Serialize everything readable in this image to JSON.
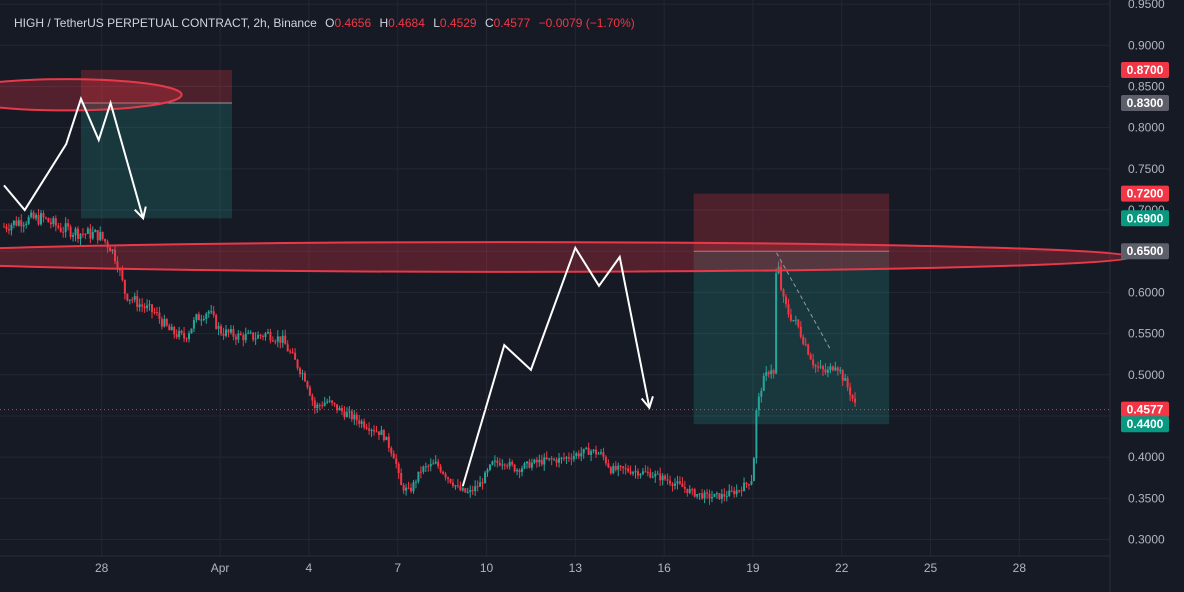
{
  "legend": {
    "symbol": "HIGH / TetherUS PERPETUAL CONTRACT, 2h, Binance",
    "o_label": "O",
    "o": "0.4656",
    "h_label": "H",
    "h": "0.4684",
    "l_label": "L",
    "l": "0.4529",
    "c_label": "C",
    "c": "0.4577",
    "change": "−0.0079 (−1.70%)"
  },
  "colors": {
    "background": "#161a25",
    "grid": "#232733",
    "up": "#26a69a",
    "down": "#f23645",
    "stop_zone": "rgba(242,54,69,0.25)",
    "target_zone": "rgba(38,166,154,0.22)",
    "ellipse": "#e8394a",
    "drawing": "#ffffff"
  },
  "chart_data": {
    "type": "candlestick",
    "title": "HIGH / TetherUS PERPETUAL CONTRACT, 2h, Binance",
    "y_ticks": [
      "0.9500",
      "0.9000",
      "0.8500",
      "0.8000",
      "0.7500",
      "0.7000",
      "0.6500",
      "0.6000",
      "0.5500",
      "0.5000",
      "0.4500",
      "0.4000",
      "0.3500",
      "0.3000"
    ],
    "x_ticks": [
      "28",
      "Apr",
      "4",
      "7",
      "10",
      "13",
      "16",
      "19",
      "22",
      "25",
      "28"
    ],
    "x_tick_days": [
      28,
      32,
      35,
      38,
      41,
      44,
      47,
      50,
      53,
      56,
      59
    ],
    "ylim": [
      0.28,
      0.955
    ],
    "xlim_days": [
      24.7,
      62.4
    ],
    "grid": true,
    "price_path": [
      [
        24.7,
        0.68
      ],
      [
        25.3,
        0.688
      ],
      [
        26.0,
        0.69
      ],
      [
        26.6,
        0.678
      ],
      [
        27.3,
        0.672
      ],
      [
        27.9,
        0.67
      ],
      [
        28.3,
        0.655
      ],
      [
        28.5,
        0.64
      ],
      [
        28.8,
        0.598
      ],
      [
        29.3,
        0.585
      ],
      [
        29.8,
        0.575
      ],
      [
        30.3,
        0.553
      ],
      [
        30.8,
        0.545
      ],
      [
        31.2,
        0.568
      ],
      [
        31.6,
        0.578
      ],
      [
        32.0,
        0.553
      ],
      [
        32.6,
        0.547
      ],
      [
        33.2,
        0.546
      ],
      [
        33.6,
        0.55
      ],
      [
        34.1,
        0.542
      ],
      [
        34.6,
        0.512
      ],
      [
        34.9,
        0.495
      ],
      [
        35.2,
        0.46
      ],
      [
        35.6,
        0.468
      ],
      [
        36.0,
        0.458
      ],
      [
        36.5,
        0.448
      ],
      [
        37.0,
        0.438
      ],
      [
        37.5,
        0.428
      ],
      [
        37.9,
        0.4
      ],
      [
        38.1,
        0.365
      ],
      [
        38.4,
        0.358
      ],
      [
        38.8,
        0.385
      ],
      [
        39.3,
        0.392
      ],
      [
        39.7,
        0.375
      ],
      [
        40.1,
        0.36
      ],
      [
        40.4,
        0.356
      ],
      [
        40.8,
        0.368
      ],
      [
        41.2,
        0.392
      ],
      [
        41.6,
        0.395
      ],
      [
        42.0,
        0.385
      ],
      [
        42.5,
        0.392
      ],
      [
        43.0,
        0.396
      ],
      [
        43.5,
        0.397
      ],
      [
        44.0,
        0.403
      ],
      [
        44.5,
        0.408
      ],
      [
        44.9,
        0.403
      ],
      [
        45.2,
        0.385
      ],
      [
        45.6,
        0.385
      ],
      [
        46.0,
        0.383
      ],
      [
        46.5,
        0.38
      ],
      [
        47.0,
        0.374
      ],
      [
        47.5,
        0.366
      ],
      [
        48.0,
        0.356
      ],
      [
        48.5,
        0.352
      ],
      [
        49.0,
        0.353
      ],
      [
        49.5,
        0.36
      ],
      [
        49.8,
        0.368
      ],
      [
        50.0,
        0.375
      ],
      [
        50.1,
        0.452
      ],
      [
        50.3,
        0.488
      ],
      [
        50.6,
        0.51
      ],
      [
        50.7,
        0.5
      ],
      [
        50.8,
        0.645
      ],
      [
        51.0,
        0.592
      ],
      [
        51.2,
        0.575
      ],
      [
        51.5,
        0.56
      ],
      [
        51.8,
        0.535
      ],
      [
        52.1,
        0.51
      ],
      [
        52.5,
        0.502
      ],
      [
        52.8,
        0.515
      ],
      [
        53.1,
        0.492
      ],
      [
        53.3,
        0.478
      ],
      [
        53.5,
        0.458
      ]
    ],
    "last_price": "0.4577",
    "price_badges": [
      {
        "label": "0.8700",
        "value": 0.87,
        "color": "#f23645"
      },
      {
        "label": "0.8300",
        "value": 0.83,
        "color": "#5d606b"
      },
      {
        "label": "0.7200",
        "value": 0.72,
        "color": "#f23645"
      },
      {
        "label": "0.6900",
        "value": 0.69,
        "color": "#089981"
      },
      {
        "label": "0.6500",
        "value": 0.65,
        "color": "#5d606b"
      },
      {
        "label": "0.4577",
        "value": 0.4577,
        "color": "#f23645"
      },
      {
        "label": "0.4400",
        "value": 0.44,
        "color": "#089981"
      }
    ],
    "positions": [
      {
        "type": "short",
        "start_day": 27.3,
        "end_day": 32.4,
        "entry": 0.83,
        "stop": 0.87,
        "target": 0.69
      },
      {
        "type": "short",
        "start_day": 48.0,
        "end_day": 54.6,
        "entry": 0.65,
        "stop": 0.72,
        "target": 0.44
      }
    ],
    "resistance_ellipses": [
      {
        "cx_day": 26.8,
        "cy": 0.84,
        "rx_days": 3.9,
        "ry": 0.019
      },
      {
        "cx_day": 41.6,
        "cy": 0.643,
        "rx_days": 21.2,
        "ry": 0.018
      }
    ],
    "drawings": [
      {
        "name": "projection-path-1",
        "points": [
          [
            24.7,
            0.73
          ],
          [
            25.4,
            0.7
          ],
          [
            26.8,
            0.78
          ],
          [
            27.3,
            0.835
          ],
          [
            27.9,
            0.785
          ],
          [
            28.3,
            0.83
          ],
          [
            29.4,
            0.69
          ]
        ]
      },
      {
        "name": "projection-path-2",
        "points": [
          [
            40.2,
            0.365
          ],
          [
            41.6,
            0.536
          ],
          [
            42.5,
            0.506
          ],
          [
            44.0,
            0.654
          ],
          [
            44.8,
            0.608
          ],
          [
            45.5,
            0.643
          ],
          [
            46.5,
            0.46
          ]
        ]
      }
    ],
    "trendline": {
      "points": [
        [
          50.8,
          0.648
        ],
        [
          52.6,
          0.532
        ]
      ]
    }
  }
}
